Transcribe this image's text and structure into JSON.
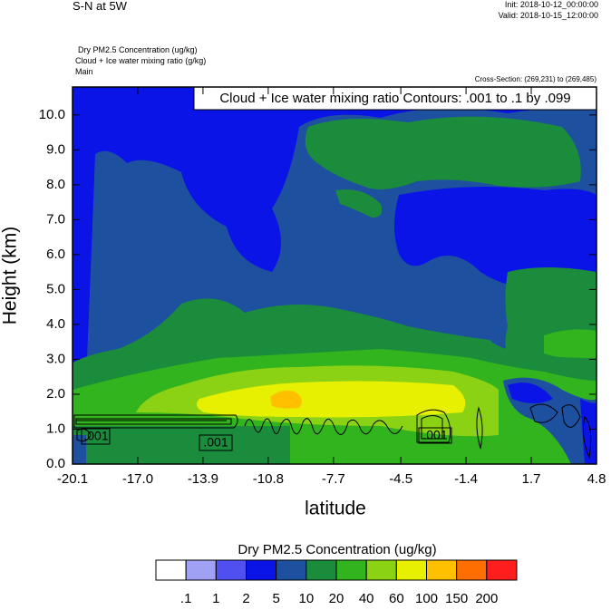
{
  "chart_data": {
    "type": "contour",
    "title": "S-N at 5W",
    "init": "Init: 2018-10-12_00:00:00",
    "valid": "Valid: 2018-10-15_12:00:00",
    "fields": [
      "Dry PM2.5 Concentration   (ug/kg)",
      "Cloud + Ice water mixing ratio   (g/kg)",
      "Main"
    ],
    "cross_section": "Cross-Section: (269,231) to (269,485)",
    "contour_info": "Cloud + Ice water mixing ratio Contours: .001 to .1 by .099",
    "contour_labels": [
      ".001",
      ".001",
      ".001"
    ],
    "xlabel": "latitude",
    "ylabel": "Height (km)",
    "xlim": [
      -20.1,
      4.8
    ],
    "xticks": [
      -20.1,
      {
        "value": -17,
        "label": "-17.0"
      },
      -13.9,
      -10.8,
      -7.7,
      -4.5,
      -1.4,
      1.7,
      4.8
    ],
    "ylim": [
      0,
      10.8
    ],
    "yticks": [
      {
        "value": 0,
        "label": "0.0"
      },
      {
        "value": 1,
        "label": "1.0"
      },
      {
        "value": 2,
        "label": "2.0"
      },
      {
        "value": 3,
        "label": "3.0"
      },
      {
        "value": 4,
        "label": "4.0"
      },
      {
        "value": 5,
        "label": "5.0"
      },
      {
        "value": 6,
        "label": "6.0"
      },
      {
        "value": 7,
        "label": "7.0"
      },
      {
        "value": 8,
        "label": "8.0"
      },
      {
        "value": 9,
        "label": "9.0"
      },
      {
        "value": 10,
        "label": "10.0"
      }
    ],
    "colorbar": {
      "title": "Dry PM2.5 Concentration  (ug/kg)",
      "levels": [
        {
          "value": 0.1,
          "label": ".1"
        },
        1,
        2,
        5,
        10,
        20,
        40,
        60,
        100,
        150,
        200
      ],
      "colors": [
        "#ffffff",
        "#a0a0f5",
        "#5050f0",
        "#0a14e6",
        "#1e50a0",
        "#1a8c3c",
        "#32b41e",
        "#8cd214",
        "#e6f000",
        "#ffc000",
        "#ff6e00",
        "#ff1e1e"
      ]
    }
  }
}
